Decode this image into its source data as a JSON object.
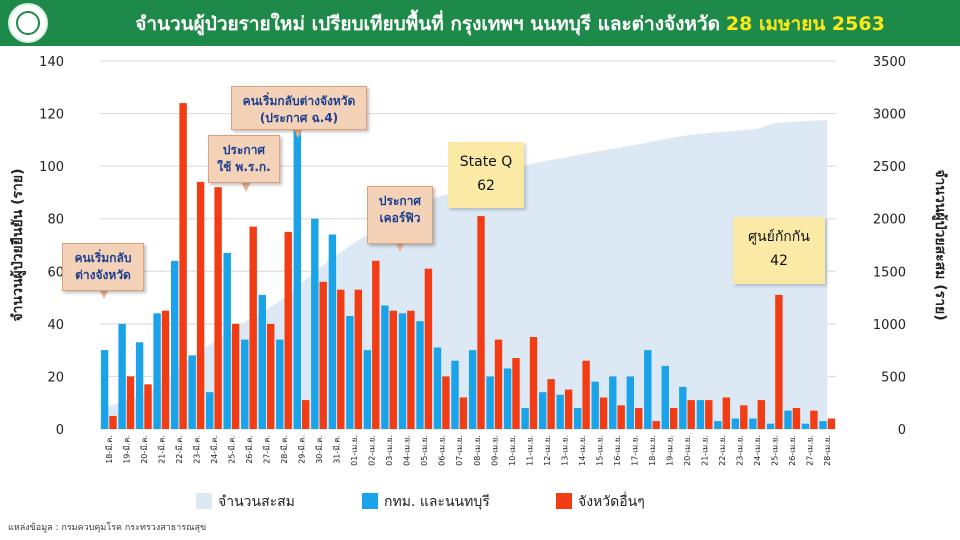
{
  "header": {
    "title": "จำนวนผู้ป่วยรายใหม่ เปรียบเทียบพื้นที่ กรุงเทพฯ นนทบุรี และต่างจังหวัด",
    "date": "28 เมษายน 2563",
    "bg_color": "#1e8a4a",
    "date_color": "#ffe81a"
  },
  "chart_data": {
    "type": "bar",
    "ylabel": "จำนวนผู้ป่วยยืนยัน (ราย)",
    "y2label": "จำนวนผู้ป่วยสะสม (ราย)",
    "ylim": [
      0,
      140
    ],
    "y2lim": [
      0,
      3500
    ],
    "yticks": [
      "0",
      "20",
      "40",
      "60",
      "80",
      "100",
      "120",
      "140"
    ],
    "y2ticks": [
      "0",
      "500",
      "1000",
      "1500",
      "2000",
      "2500",
      "3000",
      "3500"
    ],
    "grid": true,
    "legend_position": "bottom",
    "categories": [
      "18-มี.ค.",
      "19-มี.ค.",
      "20-มี.ค.",
      "21-มี.ค.",
      "22-มี.ค.",
      "23-มี.ค.",
      "24-มี.ค.",
      "25-มี.ค.",
      "26-มี.ค.",
      "27-มี.ค.",
      "28-มี.ค.",
      "29-มี.ค.",
      "30-มี.ค.",
      "31-มี.ค.",
      "01-เม.ย.",
      "02-เม.ย.",
      "03-เม.ย.",
      "04-เม.ย.",
      "05-เม.ย.",
      "06-เม.ย.",
      "07-เม.ย.",
      "08-เม.ย.",
      "09-เม.ย.",
      "10-เม.ย.",
      "11-เม.ย.",
      "12-เม.ย.",
      "13-เม.ย.",
      "14-เม.ย.",
      "15-เม.ย.",
      "16-เม.ย.",
      "17-เม.ย.",
      "18-เม.ย.",
      "19-เม.ย.",
      "20-เม.ย.",
      "21-เม.ย.",
      "22-เม.ย.",
      "23-เม.ย.",
      "24-เม.ย.",
      "25-เม.ย.",
      "26-เม.ย.",
      "27-เม.ย.",
      "28-เม.ย."
    ],
    "series": [
      {
        "name": "จำนวนสะสม",
        "kind": "area",
        "axis": "right",
        "color": "#dce8f4",
        "values": [
          212,
          272,
          322,
          411,
          599,
          721,
          827,
          934,
          1045,
          1136,
          1245,
          1388,
          1524,
          1651,
          1771,
          1875,
          1978,
          2067,
          2169,
          2220,
          2258,
          2369,
          2423,
          2473,
          2518,
          2551,
          2579,
          2613,
          2643,
          2672,
          2700,
          2733,
          2765,
          2792,
          2811,
          2826,
          2839,
          2854,
          2907,
          2922,
          2931,
          2938
        ]
      },
      {
        "name": "กทม. และนนทบุรี",
        "kind": "bar",
        "axis": "left",
        "color": "#1aa3e8",
        "values": [
          30,
          40,
          33,
          44,
          64,
          28,
          14,
          67,
          34,
          51,
          34,
          127,
          80,
          74,
          43,
          30,
          47,
          44,
          41,
          31,
          26,
          30,
          20,
          23,
          8,
          14,
          13,
          8,
          18,
          20,
          20,
          30,
          24,
          16,
          11,
          3,
          4,
          4,
          2,
          7,
          2,
          3
        ]
      },
      {
        "name": "จังหวัดอื่นๆ",
        "kind": "bar",
        "axis": "left",
        "color": "#f23c14",
        "values": [
          5,
          20,
          17,
          45,
          124,
          94,
          92,
          40,
          77,
          40,
          75,
          11,
          56,
          53,
          53,
          64,
          45,
          45,
          61,
          20,
          12,
          81,
          34,
          27,
          35,
          19,
          15,
          26,
          12,
          9,
          8,
          3,
          8,
          11,
          11,
          12,
          9,
          11,
          51,
          8,
          7,
          4
        ]
      }
    ]
  },
  "callouts": [
    {
      "lines": [
        "คนเริ่มกลับ",
        "ต่างจังหวัด"
      ],
      "style": "brown",
      "cat_index": 0
    },
    {
      "lines": [
        "ประกาศ",
        "ใช้ พ.ร.ก."
      ],
      "style": "brown",
      "cat_index": 7
    },
    {
      "lines": [
        "คนเริ่มกลับต่างจังหวัด",
        "(ประกาศ ฉ.4)"
      ],
      "style": "brown",
      "cat_index": 11
    },
    {
      "lines": [
        "ประกาศ",
        "เคอร์ฟิว"
      ],
      "style": "brown",
      "cat_index": 16
    },
    {
      "lines": [
        "State Q",
        "62"
      ],
      "style": "yellow",
      "cat_index": 21
    },
    {
      "lines": [
        "ศูนย์กักกัน",
        "42"
      ],
      "style": "yellow",
      "cat_index": 38
    }
  ],
  "source": "แหล่งข้อมูล : กรมควบคุมโรค กระทรวงสาธารณสุข"
}
